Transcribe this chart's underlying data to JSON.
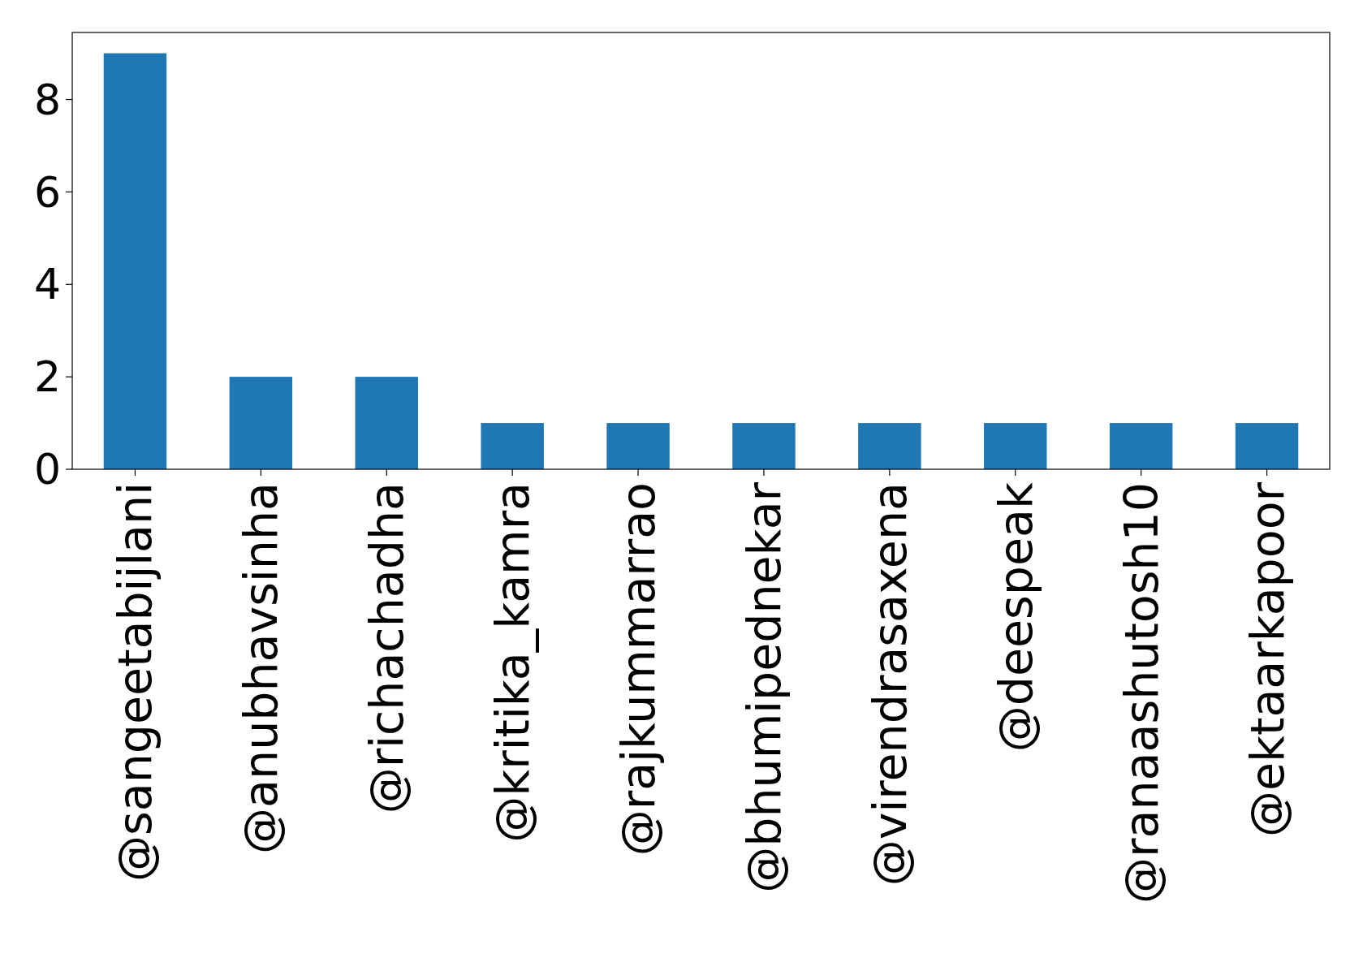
{
  "chart_data": {
    "type": "bar",
    "categories": [
      "@sangeetabijlani",
      "@anubhavsinha",
      "@richachadha",
      "@kritika_kamra",
      "@rajkummarrao",
      "@bhumipednekar",
      "@virendrasaxena",
      "@deespeak",
      "@ranaashutosh10",
      "@ektaarkapoor"
    ],
    "values": [
      9,
      2,
      2,
      1,
      1,
      1,
      1,
      1,
      1,
      1
    ],
    "color": "#1f77b4",
    "ylim": [
      0,
      9.45
    ],
    "yticks": [
      0,
      2,
      4,
      6,
      8
    ],
    "grid": false
  }
}
